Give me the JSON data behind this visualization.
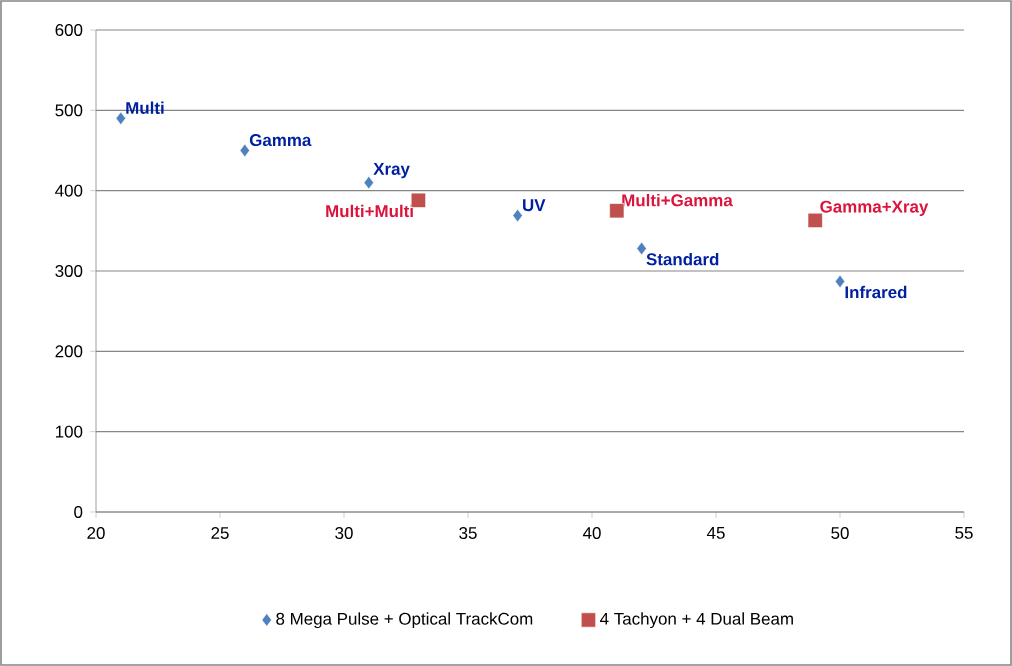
{
  "chart_data": {
    "type": "scatter",
    "xlim": [
      20,
      55
    ],
    "ylim": [
      0,
      600
    ],
    "xticks": [
      20,
      25,
      30,
      35,
      40,
      45,
      50,
      55
    ],
    "yticks": [
      0,
      100,
      200,
      300,
      400,
      500,
      600
    ],
    "grid": "y",
    "legend": "bottom",
    "series": [
      {
        "name": "8 Mega Pulse + Optical TrackCom",
        "color": "#4f81bd",
        "marker": "diamond",
        "x": [
          21,
          26,
          31,
          37,
          42,
          50
        ],
        "values": [
          490,
          450,
          410,
          369,
          328,
          287
        ]
      },
      {
        "name": "4 Tachyon + 4 Dual Beam",
        "color": "#c0504d",
        "marker": "square",
        "x": [
          33,
          41,
          49
        ],
        "values": [
          388,
          375,
          363
        ]
      }
    ],
    "annotations": [
      {
        "text": "Multi",
        "x": 21,
        "y": 490
      },
      {
        "text": "Gamma",
        "x": 26,
        "y": 450
      },
      {
        "text": "Xray",
        "x": 31,
        "y": 410
      },
      {
        "text": "UV",
        "x": 37,
        "y": 369
      },
      {
        "text": "Standard",
        "x": 42,
        "y": 328
      },
      {
        "text": "Infrared",
        "x": 50,
        "y": 287
      },
      {
        "text": "Multi+Multi",
        "x": 33,
        "y": 388
      },
      {
        "text": "Multi+Gamma",
        "x": 41,
        "y": 375
      },
      {
        "text": "Gamma+Xray",
        "x": 49,
        "y": 363
      }
    ]
  }
}
